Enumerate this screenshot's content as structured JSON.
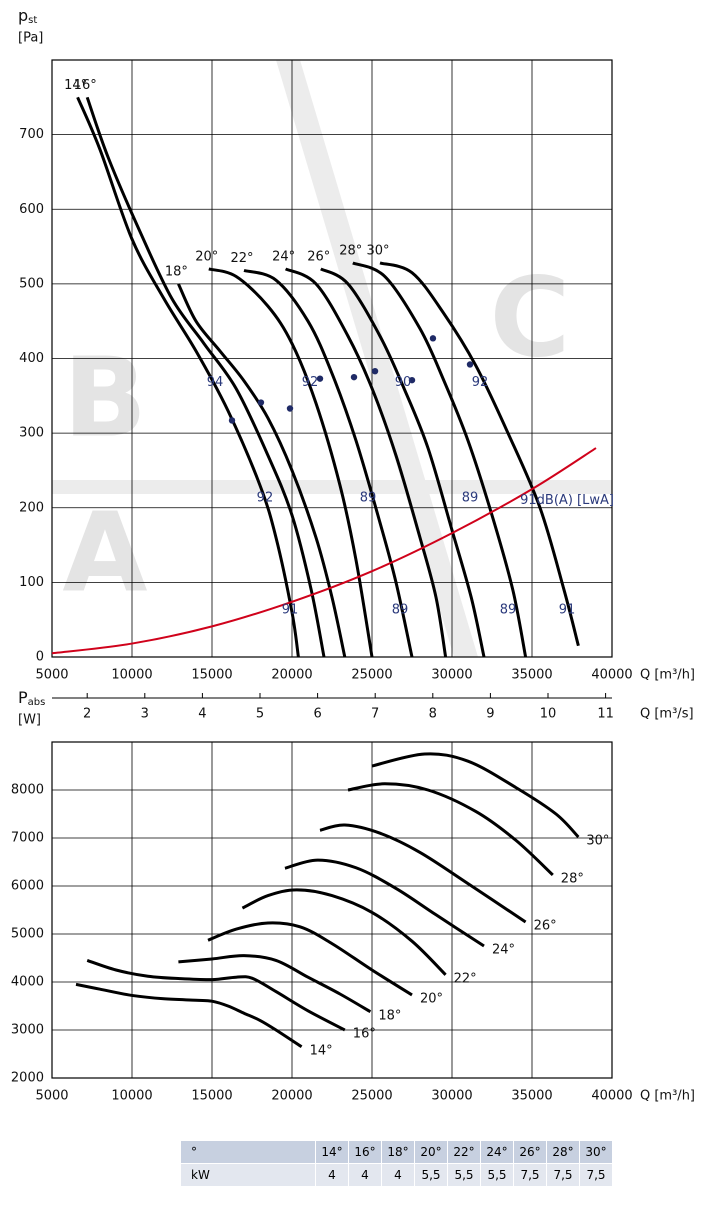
{
  "chart_data": [
    {
      "type": "line",
      "y_label": "p",
      "y_label_sub": "st",
      "y_unit": "[Pa]",
      "x_label": "Q [m³/h]",
      "x2_label": "Q [m³/s]",
      "xlim": [
        5000,
        40000
      ],
      "ylim": [
        0,
        800
      ],
      "xticks": [
        5000,
        10000,
        15000,
        20000,
        25000,
        30000,
        35000,
        40000
      ],
      "yticks": [
        0,
        100,
        200,
        300,
        400,
        500,
        600,
        700
      ],
      "x2lim": [
        1.3889,
        11.1111
      ],
      "x2ticks": [
        2,
        3,
        4,
        5,
        6,
        7,
        8,
        9,
        10,
        11
      ],
      "grid": true,
      "watermarks": [
        "B",
        "C",
        "A"
      ],
      "series": [
        {
          "name": "14°",
          "color": "#000000",
          "x": [
            6600,
            8000,
            10000,
            12000,
            14000,
            16000,
            18000,
            19000,
            20000,
            20400
          ],
          "values": [
            750,
            680,
            560,
            480,
            410,
            330,
            230,
            160,
            60,
            0
          ]
        },
        {
          "name": "16°",
          "color": "#000000",
          "x": [
            7200,
            8500,
            10500,
            12500,
            14500,
            16500,
            18500,
            20000,
            21200,
            22000
          ],
          "values": [
            750,
            670,
            570,
            480,
            420,
            360,
            270,
            190,
            90,
            0
          ]
        },
        {
          "name": "18°",
          "color": "#000000",
          "x": [
            12900,
            14000,
            15500,
            17000,
            18500,
            20000,
            21500,
            22500,
            23300
          ],
          "values": [
            500,
            450,
            410,
            370,
            320,
            250,
            160,
            80,
            0
          ]
        },
        {
          "name": "20°",
          "color": "#000000",
          "x": [
            14800,
            16500,
            18500,
            20000,
            21500,
            23000,
            24000,
            25000
          ],
          "values": [
            520,
            510,
            470,
            420,
            340,
            230,
            130,
            0
          ]
        },
        {
          "name": "22°",
          "color": "#000000",
          "x": [
            17000,
            19000,
            21000,
            22500,
            24000,
            25500,
            26500,
            27500
          ],
          "values": [
            518,
            505,
            450,
            380,
            290,
            180,
            100,
            0
          ]
        },
        {
          "name": "24°",
          "color": "#000000",
          "x": [
            19600,
            21500,
            23500,
            25000,
            26500,
            28000,
            29000,
            29600
          ],
          "values": [
            520,
            500,
            430,
            360,
            270,
            160,
            80,
            0
          ]
        },
        {
          "name": "26°",
          "color": "#000000",
          "x": [
            21800,
            23500,
            25500,
            27000,
            28500,
            30000,
            31200,
            32000
          ],
          "values": [
            520,
            500,
            430,
            360,
            280,
            170,
            80,
            0
          ]
        },
        {
          "name": "28°",
          "color": "#000000",
          "x": [
            23800,
            25800,
            28000,
            29500,
            31000,
            32500,
            33800,
            34600
          ],
          "values": [
            528,
            510,
            440,
            370,
            290,
            190,
            90,
            0
          ]
        },
        {
          "name": "30°",
          "color": "#000000",
          "x": [
            25500,
            27500,
            29500,
            31500,
            33500,
            35500,
            37000,
            37900
          ],
          "values": [
            528,
            515,
            460,
            390,
            300,
            200,
            90,
            15
          ]
        },
        {
          "color": "#d0021b",
          "x": [
            5000,
            10000,
            15000,
            20000,
            25000,
            30000,
            35000,
            39000
          ],
          "values": [
            5,
            18,
            41,
            74,
            115,
            166,
            225,
            280
          ]
        }
      ],
      "points": {
        "color": "#1f2a66",
        "x": [
          16250,
          18060,
          19875,
          21750,
          23875,
          25190,
          27500,
          28810,
          31125
        ],
        "values": [
          317,
          341,
          333,
          373,
          375,
          383,
          371,
          427,
          392
        ]
      },
      "annotations": [
        {
          "text": "94",
          "x": 15190,
          "y": 368
        },
        {
          "text": "92",
          "x": 21125,
          "y": 368
        },
        {
          "text": "90",
          "x": 26940,
          "y": 368
        },
        {
          "text": "92",
          "x": 31750,
          "y": 368
        },
        {
          "text": "92",
          "x": 18310,
          "y": 213
        },
        {
          "text": "89",
          "x": 24750,
          "y": 213
        },
        {
          "text": "89",
          "x": 31125,
          "y": 213
        },
        {
          "text": "91dB(A) [LwA]",
          "x": 37190,
          "y": 210
        },
        {
          "text": "91",
          "x": 19875,
          "y": 63
        },
        {
          "text": "89",
          "x": 26750,
          "y": 63
        },
        {
          "text": "89",
          "x": 33500,
          "y": 63
        },
        {
          "text": "91",
          "x": 37190,
          "y": 63
        }
      ]
    },
    {
      "type": "line",
      "y_label": "P",
      "y_label_sub": "abs",
      "y_unit": "[W]",
      "x_label": "Q [m³/h]",
      "xlim": [
        5000,
        40000
      ],
      "ylim": [
        2000,
        9000
      ],
      "xticks": [
        5000,
        10000,
        15000,
        20000,
        25000,
        30000,
        35000,
        40000
      ],
      "yticks": [
        2000,
        3000,
        4000,
        5000,
        6000,
        7000,
        8000
      ],
      "grid": true,
      "series": [
        {
          "name": "14°",
          "color": "#000000",
          "x": [
            6500,
            8000,
            10000,
            12000,
            14000,
            15000,
            16000,
            17000,
            18000,
            19000,
            20600
          ],
          "values": [
            3950,
            3850,
            3720,
            3650,
            3620,
            3600,
            3500,
            3350,
            3200,
            3000,
            2650
          ]
        },
        {
          "name": "16°",
          "color": "#000000",
          "x": [
            7200,
            9000,
            11000,
            13000,
            15000,
            16500,
            17500,
            19000,
            21000,
            23300
          ],
          "values": [
            4450,
            4250,
            4120,
            4070,
            4050,
            4100,
            4080,
            3800,
            3400,
            3000
          ]
        },
        {
          "name": "18°",
          "color": "#000000",
          "x": [
            12900,
            15000,
            17000,
            19000,
            21000,
            23000,
            24900
          ],
          "values": [
            4420,
            4480,
            4550,
            4450,
            4100,
            3750,
            3380
          ]
        },
        {
          "name": "20°",
          "color": "#000000",
          "x": [
            14750,
            16500,
            18500,
            20500,
            22500,
            25000,
            27500
          ],
          "values": [
            4870,
            5100,
            5230,
            5150,
            4800,
            4250,
            3730
          ]
        },
        {
          "name": "22°",
          "color": "#000000",
          "x": [
            16900,
            18500,
            20300,
            22500,
            25000,
            27500,
            29600
          ],
          "values": [
            5540,
            5800,
            5920,
            5800,
            5450,
            4850,
            4150
          ]
        },
        {
          "name": "24°",
          "color": "#000000",
          "x": [
            19560,
            21600,
            24000,
            26500,
            29000,
            32000
          ],
          "values": [
            6370,
            6540,
            6380,
            5950,
            5400,
            4750
          ]
        },
        {
          "name": "26°",
          "color": "#000000",
          "x": [
            21750,
            23300,
            25500,
            28000,
            31000,
            34600
          ],
          "values": [
            7160,
            7270,
            7100,
            6700,
            6050,
            5250
          ]
        },
        {
          "name": "28°",
          "color": "#000000",
          "x": [
            23500,
            25800,
            28500,
            31500,
            34000,
            36300
          ],
          "values": [
            8000,
            8130,
            8000,
            7550,
            6950,
            6230
          ]
        },
        {
          "name": "30°",
          "color": "#000000",
          "x": [
            25000,
            28300,
            31000,
            34000,
            36500,
            37900
          ],
          "values": [
            8500,
            8750,
            8600,
            8050,
            7500,
            7020
          ]
        }
      ]
    }
  ],
  "table": {
    "rows": [
      [
        "°",
        "14°",
        "16°",
        "18°",
        "20°",
        "22°",
        "24°",
        "26°",
        "28°",
        "30°"
      ],
      [
        "kW",
        "4",
        "4",
        "4",
        "5,5",
        "5,5",
        "5,5",
        "7,5",
        "7,5",
        "7,5"
      ]
    ]
  }
}
